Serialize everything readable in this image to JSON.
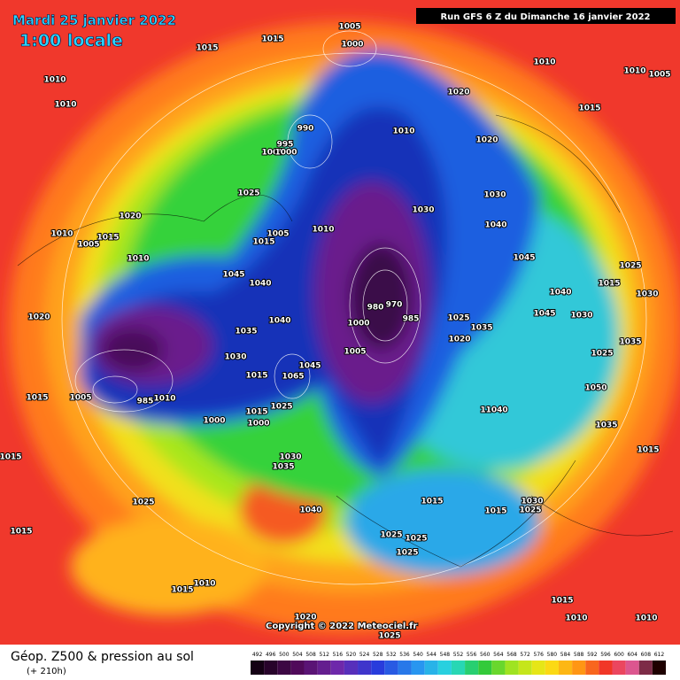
{
  "header": {
    "valid_date": "Mardi 25 janvier 2022",
    "local_time": "1:00 locale",
    "run": "Run GFS 6 Z du Dimanche 16 janvier 2022"
  },
  "footer": {
    "product": "Géop. Z500 & pression au sol",
    "lead": "(+ 210h)",
    "copyright": "Copyright © 2022 Meteociel.fr"
  },
  "legend": {
    "values": [
      492,
      496,
      500,
      504,
      508,
      512,
      516,
      520,
      524,
      528,
      532,
      536,
      540,
      544,
      548,
      552,
      556,
      560,
      564,
      568,
      572,
      576,
      580,
      584,
      588,
      592,
      596,
      600,
      604,
      608,
      612
    ]
  },
  "isobar_labels": [
    1005,
    1000,
    1015,
    1015,
    1010,
    1010,
    1010,
    1010,
    1005,
    1020,
    1015,
    990,
    1010,
    995,
    1005,
    1000,
    1020,
    1025,
    1030,
    1030,
    1020,
    1010,
    1005,
    1015,
    1005,
    1015,
    1010,
    1040,
    1010,
    1045,
    1040,
    1045,
    1025,
    1015,
    1030,
    1040,
    980,
    970,
    985,
    1000,
    1040,
    1020,
    1025,
    1035,
    1045,
    1030,
    1035,
    1020,
    1005,
    1035,
    1025,
    1030,
    1045,
    1065,
    1015,
    1050,
    1015,
    985,
    1010,
    1005,
    1025,
    1000,
    1015,
    1000,
    11040,
    1035,
    1015,
    1030,
    1035,
    1015,
    1025,
    1040,
    1015,
    1015,
    1030,
    1025,
    1015,
    1025,
    1025,
    1025,
    1015,
    1010,
    1015,
    1010,
    1010,
    1020,
    1025
  ]
}
